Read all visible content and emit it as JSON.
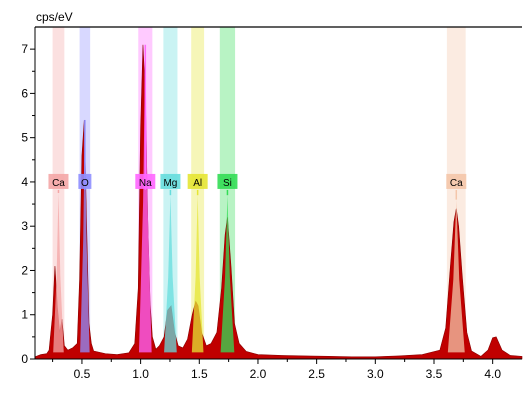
{
  "chart_data": {
    "type": "area",
    "title": "",
    "ylabel": "cps/eV",
    "xlabel": "",
    "xlim": [
      0.1,
      4.25
    ],
    "ylim": [
      0,
      7.5
    ],
    "x_ticks": [
      "0.5",
      "1.0",
      "1.5",
      "2.0",
      "2.5",
      "3.0",
      "3.5",
      "4.0"
    ],
    "y_ticks": [
      "0",
      "1",
      "2",
      "3",
      "4",
      "5",
      "6",
      "7"
    ],
    "grid": false,
    "colors": {
      "spectrum_fill": "#c00000",
      "spectrum_edge": "#8b0000"
    },
    "spectrum": {
      "x": [
        0.1,
        0.15,
        0.2,
        0.22,
        0.25,
        0.27,
        0.29,
        0.31,
        0.33,
        0.35,
        0.38,
        0.42,
        0.46,
        0.48,
        0.5,
        0.52,
        0.54,
        0.56,
        0.58,
        0.6,
        0.7,
        0.8,
        0.9,
        0.95,
        0.98,
        1.0,
        1.02,
        1.04,
        1.06,
        1.08,
        1.1,
        1.13,
        1.16,
        1.2,
        1.23,
        1.26,
        1.29,
        1.32,
        1.36,
        1.4,
        1.44,
        1.47,
        1.49,
        1.52,
        1.56,
        1.6,
        1.65,
        1.69,
        1.72,
        1.74,
        1.77,
        1.8,
        1.84,
        1.9,
        2.0,
        2.2,
        2.4,
        2.6,
        2.8,
        3.0,
        3.2,
        3.4,
        3.55,
        3.6,
        3.64,
        3.67,
        3.69,
        3.71,
        3.74,
        3.78,
        3.82,
        3.9,
        3.96,
        4.0,
        4.03,
        4.08,
        4.15,
        4.25
      ],
      "y": [
        0.05,
        0.1,
        0.12,
        0.2,
        1.0,
        2.1,
        1.2,
        0.6,
        0.9,
        0.3,
        0.2,
        0.25,
        0.35,
        1.8,
        4.6,
        5.4,
        3.0,
        0.8,
        0.35,
        0.18,
        0.12,
        0.1,
        0.14,
        0.35,
        1.6,
        5.2,
        7.1,
        6.0,
        3.2,
        1.3,
        0.5,
        0.22,
        0.3,
        0.5,
        1.1,
        1.2,
        0.6,
        0.3,
        0.25,
        0.45,
        1.0,
        1.3,
        1.2,
        0.6,
        0.3,
        0.35,
        0.6,
        1.6,
        2.8,
        3.2,
        2.1,
        0.8,
        0.35,
        0.17,
        0.1,
        0.08,
        0.07,
        0.06,
        0.05,
        0.05,
        0.07,
        0.1,
        0.2,
        0.7,
        2.1,
        3.1,
        3.4,
        3.0,
        1.9,
        0.6,
        0.18,
        0.06,
        0.2,
        0.48,
        0.5,
        0.2,
        0.08,
        0.06
      ]
    },
    "annotations": [
      {
        "label": "Ca",
        "energy": 0.3,
        "peak": 3.75,
        "color": "#f4a6a6",
        "band_width": 0.1
      },
      {
        "label": "O",
        "energy": 0.525,
        "peak": 5.4,
        "color": "#8f8fff",
        "band_width": 0.09
      },
      {
        "label": "Na",
        "energy": 1.04,
        "peak": 7.1,
        "color": "#ff66ff",
        "band_width": 0.12
      },
      {
        "label": "Mg",
        "energy": 1.254,
        "peak": 3.7,
        "color": "#66dddd",
        "band_width": 0.12
      },
      {
        "label": "Al",
        "energy": 1.486,
        "peak": 3.7,
        "color": "#e6e633",
        "band_width": 0.11
      },
      {
        "label": "Si",
        "energy": 1.74,
        "peak": 3.7,
        "color": "#33dd55",
        "band_width": 0.13
      },
      {
        "label": "Ca",
        "energy": 3.69,
        "peak": 3.6,
        "color": "#f4c6aa",
        "band_width": 0.16
      }
    ]
  }
}
